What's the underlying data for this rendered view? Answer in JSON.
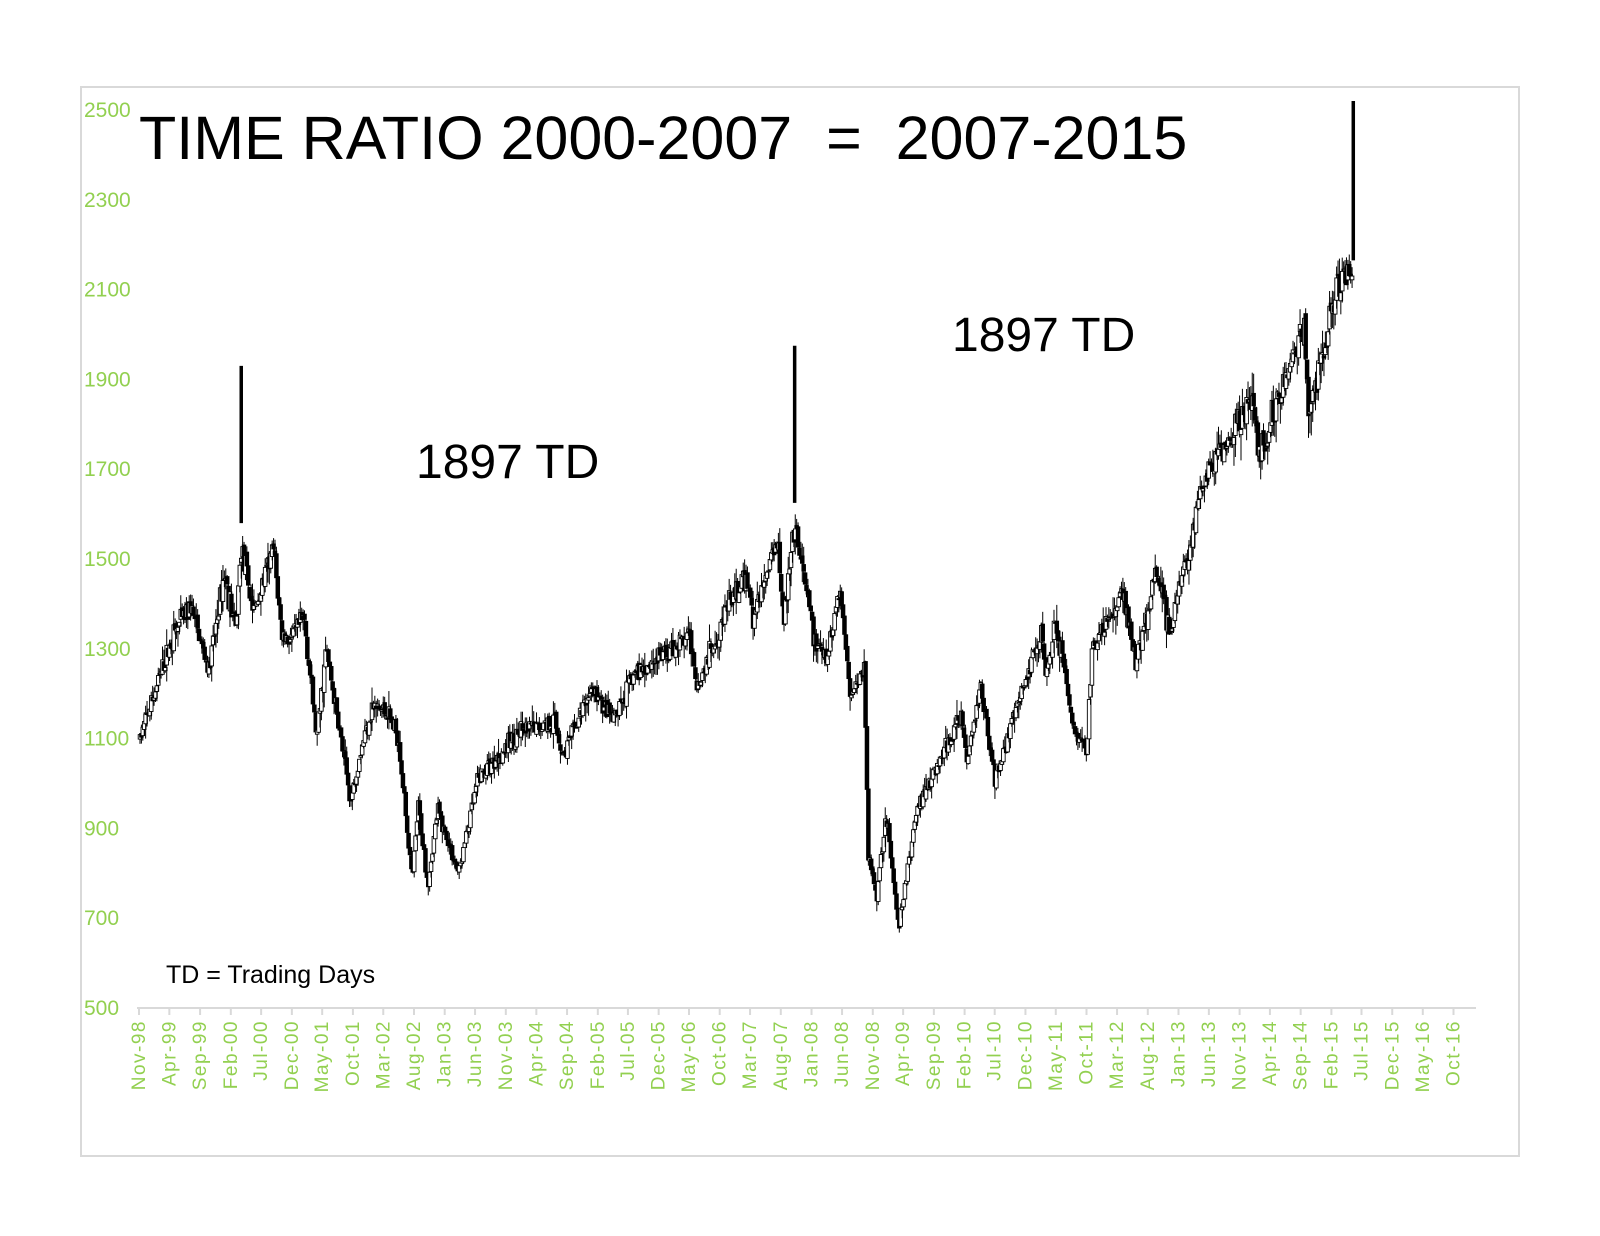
{
  "chart_data": {
    "type": "candlestick",
    "title": "TIME RATIO 2000-2007  =  2007-2015",
    "ylim": [
      500,
      2500
    ],
    "yticks": [
      500,
      700,
      900,
      1100,
      1300,
      1500,
      1700,
      1900,
      2100,
      2300,
      2500
    ],
    "xticks": [
      "Nov-98",
      "Apr-99",
      "Sep-99",
      "Feb-00",
      "Jul-00",
      "Dec-00",
      "May-01",
      "Oct-01",
      "Mar-02",
      "Aug-02",
      "Jan-03",
      "Jun-03",
      "Nov-03",
      "Apr-04",
      "Sep-04",
      "Feb-05",
      "Jul-05",
      "Dec-05",
      "May-06",
      "Oct-06",
      "Mar-07",
      "Aug-07",
      "Jan-08",
      "Jun-08",
      "Nov-08",
      "Apr-09",
      "Sep-09",
      "Feb-10",
      "Jul-10",
      "Dec-10",
      "May-11",
      "Oct-11",
      "Mar-12",
      "Aug-12",
      "Jan-13",
      "Jun-13",
      "Nov-13",
      "Apr-14",
      "Sep-14",
      "Feb-15",
      "Jul-15",
      "Dec-15",
      "May-16",
      "Oct-16"
    ],
    "x_start": "1998-11-01",
    "x_end": "2017-01-01",
    "grid": false,
    "colors": {
      "tick_labels": "#92d050",
      "axis": "#d9d9d9",
      "candle": "#000000",
      "marker": "#000000"
    },
    "markers": [
      {
        "date": "2000-03-24",
        "top_value": 1930,
        "bottom_value": 1580
      },
      {
        "date": "2007-10-09",
        "top_value": 1975,
        "bottom_value": 1625
      },
      {
        "date": "2015-05-21",
        "top_value": 2520,
        "bottom_value": 2165
      }
    ],
    "annotations": [
      {
        "text": "1897 TD"
      },
      {
        "text": "1897 TD"
      },
      {
        "text": "TD = Trading Days"
      }
    ],
    "series": [
      {
        "type": "weekly-candles",
        "anchors": [
          [
            "1998-11-06",
            1100
          ],
          [
            "1999-02-15",
            1240
          ],
          [
            "1999-04-20",
            1330
          ],
          [
            "1999-07-16",
            1395
          ],
          [
            "1999-10-15",
            1250
          ],
          [
            "1999-12-31",
            1470
          ],
          [
            "2000-02-25",
            1340
          ],
          [
            "2000-03-24",
            1527
          ],
          [
            "2000-05-24",
            1380
          ],
          [
            "2000-09-01",
            1520
          ],
          [
            "2000-10-13",
            1330
          ],
          [
            "2000-11-30",
            1320
          ],
          [
            "2001-01-31",
            1370
          ],
          [
            "2001-04-04",
            1100
          ],
          [
            "2001-05-21",
            1300
          ],
          [
            "2001-09-21",
            960
          ],
          [
            "2001-10-31",
            1060
          ],
          [
            "2002-01-04",
            1170
          ],
          [
            "2002-03-19",
            1160
          ],
          [
            "2002-05-17",
            1100
          ],
          [
            "2002-07-23",
            780
          ],
          [
            "2002-08-22",
            950
          ],
          [
            "2002-10-09",
            777
          ],
          [
            "2002-11-27",
            940
          ],
          [
            "2003-03-11",
            800
          ],
          [
            "2003-06-17",
            1010
          ],
          [
            "2003-12-31",
            1110
          ],
          [
            "2004-06-30",
            1140
          ],
          [
            "2004-08-13",
            1063
          ],
          [
            "2004-12-31",
            1212
          ],
          [
            "2005-04-20",
            1138
          ],
          [
            "2005-08-02",
            1245
          ],
          [
            "2006-05-05",
            1326
          ],
          [
            "2006-06-13",
            1220
          ],
          [
            "2006-11-15",
            1400
          ],
          [
            "2007-02-20",
            1460
          ],
          [
            "2007-03-14",
            1360
          ],
          [
            "2007-07-16",
            1555
          ],
          [
            "2007-08-16",
            1370
          ],
          [
            "2007-10-09",
            1565
          ],
          [
            "2008-01-22",
            1310
          ],
          [
            "2008-03-17",
            1270
          ],
          [
            "2008-05-19",
            1440
          ],
          [
            "2008-07-15",
            1200
          ],
          [
            "2008-09-19",
            1255
          ],
          [
            "2008-10-10",
            840
          ],
          [
            "2008-11-20",
            752
          ],
          [
            "2009-01-06",
            935
          ],
          [
            "2009-03-09",
            676
          ],
          [
            "2009-06-12",
            950
          ],
          [
            "2010-01-19",
            1150
          ],
          [
            "2010-02-08",
            1044
          ],
          [
            "2010-04-23",
            1217
          ],
          [
            "2010-07-02",
            1010
          ],
          [
            "2011-02-18",
            1344
          ],
          [
            "2011-03-16",
            1249
          ],
          [
            "2011-04-29",
            1370
          ],
          [
            "2011-08-08",
            1101
          ],
          [
            "2011-10-04",
            1075
          ],
          [
            "2011-10-27",
            1292
          ],
          [
            "2012-04-02",
            1422
          ],
          [
            "2012-06-04",
            1266
          ],
          [
            "2012-09-14",
            1475
          ],
          [
            "2012-11-16",
            1343
          ],
          [
            "2013-05-21",
            1687
          ],
          [
            "2013-12-31",
            1848
          ],
          [
            "2014-02-05",
            1737
          ],
          [
            "2014-09-18",
            2019
          ],
          [
            "2014-10-15",
            1820
          ],
          [
            "2015-02-27",
            2110
          ],
          [
            "2015-05-21",
            2135
          ]
        ]
      }
    ]
  }
}
